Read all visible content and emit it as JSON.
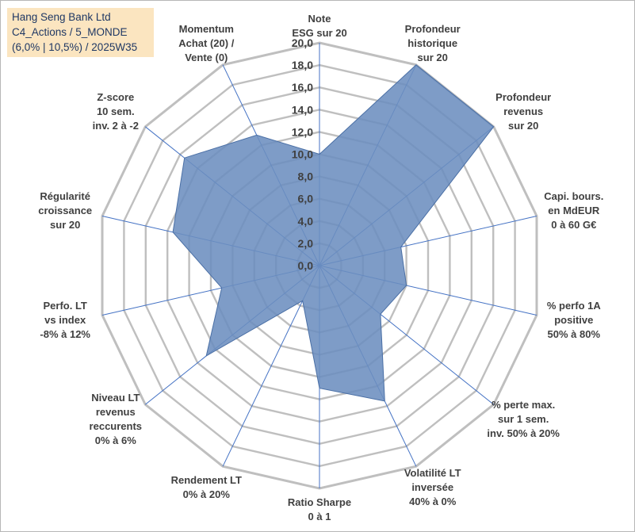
{
  "title_box": {
    "line1": "Hang Seng Bank Ltd",
    "line2": "C4_Actions / 5_MONDE",
    "line3": "(6,0% | 10,5%) / 2025W35"
  },
  "colors": {
    "fill": "#6c8ebf",
    "stroke": "#4a6fa5",
    "grid": "#bfbfbf",
    "spoke": "#4472c4",
    "title_bg": "#fbe5c0",
    "title_text": "#1f3864"
  },
  "chart_data": {
    "type": "radar",
    "range": [
      0,
      20
    ],
    "tick_step": 2,
    "tick_labels": [
      "0,0",
      "2,0",
      "4,0",
      "6,0",
      "8,0",
      "10,0",
      "12,0",
      "14,0",
      "16,0",
      "18,0",
      "20,0"
    ],
    "categories": [
      [
        "Note",
        "ESG sur 20"
      ],
      [
        "Profondeur",
        "historique",
        "sur 20"
      ],
      [
        "Profondeur",
        "revenus",
        "sur 20"
      ],
      [
        "Capi. bours.",
        "en MdEUR",
        "0 à 60 G€"
      ],
      [
        "% perfo 1A",
        "positive",
        "50% à 80%"
      ],
      [
        "% perte max.",
        "sur 1 sem.",
        "inv. 50% à 20%"
      ],
      [
        "Volatilité LT",
        "inversée",
        "40% à 0%"
      ],
      [
        "Ratio Sharpe",
        "0 à 1"
      ],
      [
        "Rendement LT",
        "0% à 20%"
      ],
      [
        "Niveau LT",
        "revenus",
        "reccurents",
        "0% à 6%"
      ],
      [
        "Perfo. LT",
        "vs index",
        "-8% à 12%"
      ],
      [
        "Régularité",
        "croissance",
        "sur 20"
      ],
      [
        "Z-score",
        "10 sem.",
        "inv. 2 à -2"
      ],
      [
        "Momentum",
        "Achat (20) /",
        "Vente (0)"
      ]
    ],
    "values": [
      10.0,
      20.0,
      20.0,
      7.5,
      8.0,
      7.0,
      13.5,
      11.0,
      3.5,
      13.0,
      9.0,
      13.5,
      15.5,
      13.0
    ]
  }
}
